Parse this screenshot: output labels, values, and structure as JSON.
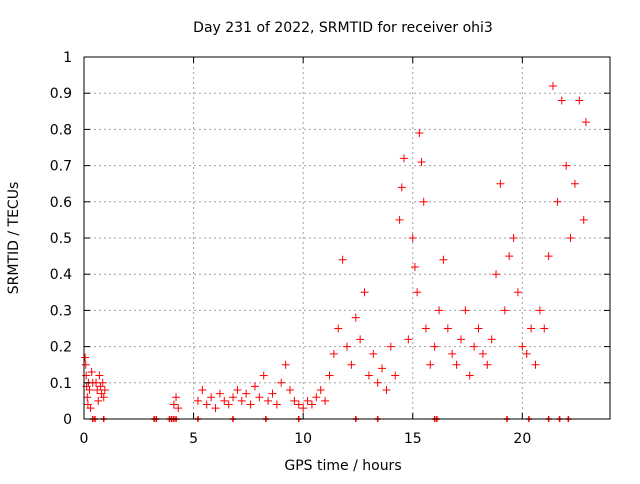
{
  "chart_data": {
    "type": "scatter",
    "title": "Day 231 of 2022, SRMTID for receiver ohi3",
    "xlabel": "GPS time / hours",
    "ylabel": "SRMTID / TECUs",
    "xlim": [
      0,
      24
    ],
    "ylim": [
      0,
      1
    ],
    "xticks": [
      0,
      5,
      10,
      15,
      20
    ],
    "xtick_labels": [
      "0",
      "5",
      "10",
      "15",
      "20"
    ],
    "yticks": [
      0,
      0.1,
      0.2,
      0.3,
      0.4,
      0.5,
      0.6,
      0.7,
      0.8,
      0.9,
      1
    ],
    "ytick_labels": [
      "0",
      "0.1",
      "0.2",
      "0.3",
      "0.4",
      "0.5",
      "0.6",
      "0.7",
      "0.8",
      "0.9",
      "1"
    ],
    "grid": true,
    "marker": "+",
    "series_color": "#ff0000",
    "series": [
      {
        "name": "SRMTID",
        "points": [
          [
            0.05,
            0.17
          ],
          [
            0.08,
            0.15
          ],
          [
            0.1,
            0.12
          ],
          [
            0.12,
            0.09
          ],
          [
            0.15,
            0.06
          ],
          [
            0.18,
            0.04
          ],
          [
            0.2,
            0.1
          ],
          [
            0.25,
            0.08
          ],
          [
            0.3,
            0.03
          ],
          [
            0.35,
            0.13
          ],
          [
            0.4,
            0.1
          ],
          [
            0.55,
            0.1
          ],
          [
            0.6,
            0.08
          ],
          [
            0.65,
            0.05
          ],
          [
            0.7,
            0.12
          ],
          [
            0.75,
            0.09
          ],
          [
            0.8,
            0.07
          ],
          [
            0.85,
            0.1
          ],
          [
            0.9,
            0.06
          ],
          [
            0.95,
            0.08
          ],
          [
            4.1,
            0.04
          ],
          [
            4.2,
            0.06
          ],
          [
            4.3,
            0.03
          ],
          [
            5.2,
            0.05
          ],
          [
            5.4,
            0.08
          ],
          [
            5.6,
            0.04
          ],
          [
            5.8,
            0.06
          ],
          [
            6.0,
            0.03
          ],
          [
            6.2,
            0.07
          ],
          [
            6.4,
            0.05
          ],
          [
            6.6,
            0.04
          ],
          [
            6.8,
            0.06
          ],
          [
            7.0,
            0.08
          ],
          [
            7.2,
            0.05
          ],
          [
            7.4,
            0.07
          ],
          [
            7.6,
            0.04
          ],
          [
            7.8,
            0.09
          ],
          [
            8.0,
            0.06
          ],
          [
            8.2,
            0.12
          ],
          [
            8.4,
            0.05
          ],
          [
            8.6,
            0.07
          ],
          [
            8.8,
            0.04
          ],
          [
            9.0,
            0.1
          ],
          [
            9.2,
            0.15
          ],
          [
            9.4,
            0.08
          ],
          [
            9.6,
            0.05
          ],
          [
            9.8,
            0.04
          ],
          [
            10.0,
            0.03
          ],
          [
            10.2,
            0.05
          ],
          [
            10.4,
            0.04
          ],
          [
            10.6,
            0.06
          ],
          [
            10.8,
            0.08
          ],
          [
            11.0,
            0.05
          ],
          [
            11.2,
            0.12
          ],
          [
            11.4,
            0.18
          ],
          [
            11.6,
            0.25
          ],
          [
            11.8,
            0.44
          ],
          [
            12.0,
            0.2
          ],
          [
            12.2,
            0.15
          ],
          [
            12.4,
            0.28
          ],
          [
            12.6,
            0.22
          ],
          [
            12.8,
            0.35
          ],
          [
            13.0,
            0.12
          ],
          [
            13.2,
            0.18
          ],
          [
            13.4,
            0.1
          ],
          [
            13.6,
            0.14
          ],
          [
            13.8,
            0.08
          ],
          [
            14.0,
            0.2
          ],
          [
            14.2,
            0.12
          ],
          [
            14.4,
            0.55
          ],
          [
            14.5,
            0.64
          ],
          [
            14.6,
            0.72
          ],
          [
            14.8,
            0.22
          ],
          [
            15.0,
            0.5
          ],
          [
            15.1,
            0.42
          ],
          [
            15.2,
            0.35
          ],
          [
            15.3,
            0.79
          ],
          [
            15.4,
            0.71
          ],
          [
            15.5,
            0.6
          ],
          [
            15.6,
            0.25
          ],
          [
            15.8,
            0.15
          ],
          [
            16.0,
            0.2
          ],
          [
            16.2,
            0.3
          ],
          [
            16.4,
            0.44
          ],
          [
            16.6,
            0.25
          ],
          [
            16.8,
            0.18
          ],
          [
            17.0,
            0.15
          ],
          [
            17.2,
            0.22
          ],
          [
            17.4,
            0.3
          ],
          [
            17.6,
            0.12
          ],
          [
            17.8,
            0.2
          ],
          [
            18.0,
            0.25
          ],
          [
            18.2,
            0.18
          ],
          [
            18.4,
            0.15
          ],
          [
            18.6,
            0.22
          ],
          [
            18.8,
            0.4
          ],
          [
            19.0,
            0.65
          ],
          [
            19.2,
            0.3
          ],
          [
            19.4,
            0.45
          ],
          [
            19.6,
            0.5
          ],
          [
            19.8,
            0.35
          ],
          [
            20.0,
            0.2
          ],
          [
            20.2,
            0.18
          ],
          [
            20.4,
            0.25
          ],
          [
            20.6,
            0.15
          ],
          [
            20.8,
            0.3
          ],
          [
            21.0,
            0.25
          ],
          [
            21.2,
            0.45
          ],
          [
            21.4,
            0.92
          ],
          [
            21.6,
            0.6
          ],
          [
            21.8,
            0.88
          ],
          [
            22.0,
            0.7
          ],
          [
            22.2,
            0.5
          ],
          [
            22.4,
            0.65
          ],
          [
            22.6,
            0.88
          ],
          [
            22.8,
            0.55
          ],
          [
            22.9,
            0.82
          ]
        ]
      }
    ],
    "zero_markers_x": [
      0.4,
      0.5,
      0.9,
      3.2,
      3.3,
      3.9,
      4.0,
      4.1,
      4.2,
      5.2,
      6.8,
      8.3,
      9.8,
      12.4,
      13.4,
      16.0,
      16.1,
      19.3,
      20.3,
      21.2,
      21.7,
      22.1
    ]
  }
}
